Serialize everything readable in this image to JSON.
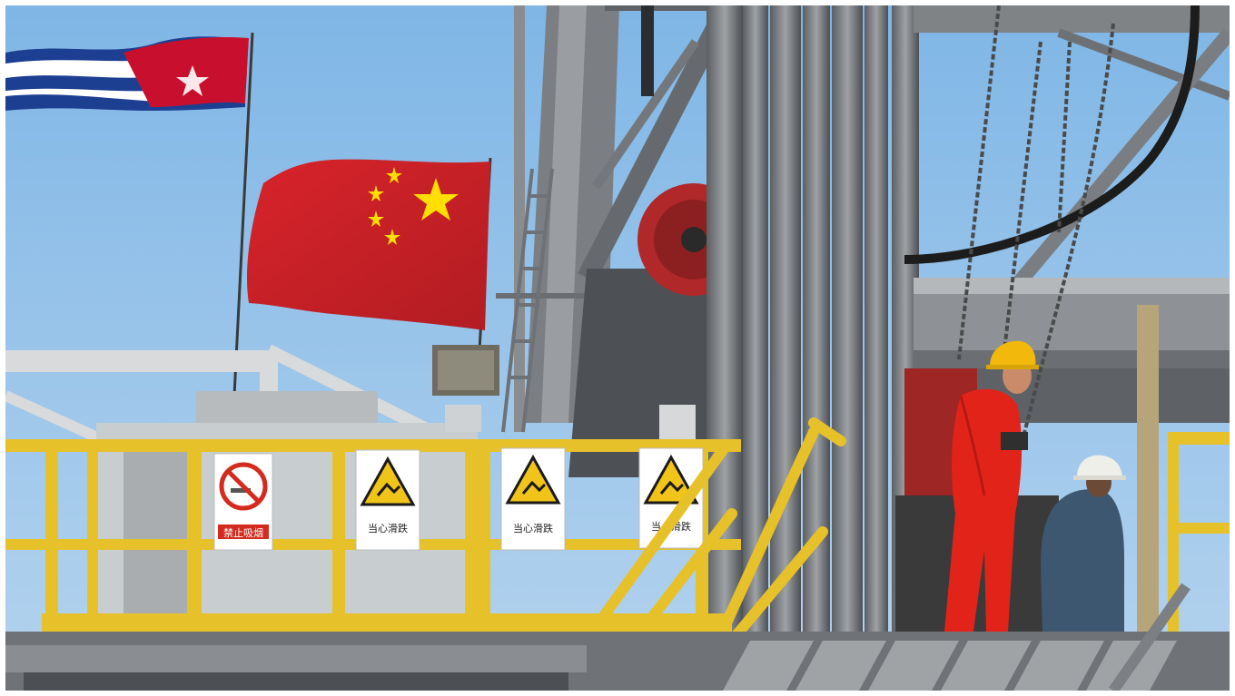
{
  "scene": {
    "sky_color": "#8fbde6",
    "subjects": [
      "cuba-flag",
      "china-flag",
      "oil-drilling-rig",
      "yellow-safety-railing",
      "warning-signs",
      "worker-red-coverall",
      "worker-blue-coverall"
    ]
  },
  "signs": [
    {
      "id": "sign-1",
      "caption": "禁止吸烟",
      "icon": "no-smoking-icon"
    },
    {
      "id": "sign-2",
      "caption": "当心滑跌",
      "icon": "slip-warning-icon"
    },
    {
      "id": "sign-3",
      "caption": "当心滑跌",
      "icon": "slip-warning-icon"
    },
    {
      "id": "sign-4",
      "caption": "当心滑跌",
      "icon": "slip-warning-icon"
    }
  ],
  "colors": {
    "china_red": "#d8232a",
    "china_star": "#ffde00",
    "cuba_blue": "#1d3f92",
    "cuba_red": "#c8102e",
    "railing_yellow": "#e7c12a",
    "steel": "#6f7378",
    "worker_red": "#e2231a",
    "worker_blue": "#3d5770"
  }
}
